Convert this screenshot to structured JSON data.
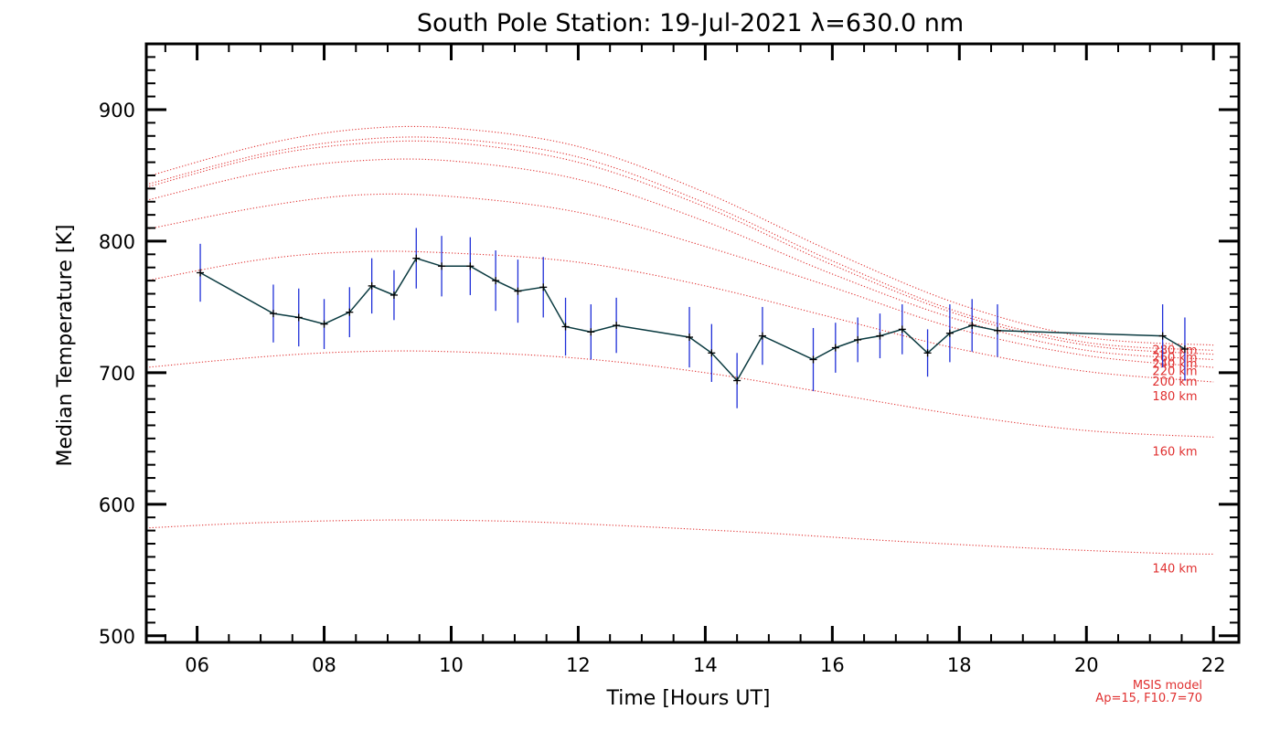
{
  "chart_data": {
    "type": "line",
    "title": "South Pole Station: 19-Jul-2021 λ=630.0 nm",
    "xlabel": "Time [Hours UT]",
    "ylabel": "Median Temperature [K]",
    "xlim": [
      5.2,
      22.4
    ],
    "ylim": [
      495,
      950
    ],
    "x_ticks": [
      6,
      8,
      10,
      12,
      14,
      16,
      18,
      20,
      22
    ],
    "x_tick_labels": [
      "06",
      "08",
      "10",
      "12",
      "14",
      "16",
      "18",
      "20",
      "22"
    ],
    "y_ticks": [
      500,
      600,
      700,
      800,
      900
    ],
    "y_tick_labels": [
      "500",
      "600",
      "700",
      "800",
      "900"
    ],
    "grid": false,
    "colors": {
      "measured": "#0a3a40",
      "error_bars": "#1f2fd8",
      "markers": "#000000",
      "model": "#e03030"
    },
    "series": [
      {
        "points": [
          [
            6.05,
            776,
            22
          ],
          [
            7.2,
            745,
            22
          ],
          [
            7.6,
            742,
            22
          ],
          [
            8.0,
            737,
            19
          ],
          [
            8.4,
            746,
            19
          ],
          [
            8.75,
            766,
            21
          ],
          [
            9.1,
            759,
            19
          ],
          [
            9.45,
            787,
            23
          ],
          [
            9.85,
            781,
            23
          ],
          [
            10.3,
            781,
            22
          ],
          [
            10.7,
            770,
            23
          ],
          [
            11.05,
            762,
            24
          ],
          [
            11.45,
            765,
            23
          ],
          [
            11.8,
            735,
            22
          ],
          [
            12.2,
            731,
            21
          ],
          [
            12.6,
            736,
            21
          ],
          [
            13.75,
            727,
            23
          ],
          [
            14.1,
            715,
            22
          ],
          [
            14.5,
            694,
            21
          ],
          [
            14.9,
            728,
            22
          ],
          [
            15.7,
            710,
            24
          ],
          [
            16.05,
            719,
            19
          ],
          [
            16.4,
            725,
            17
          ],
          [
            16.75,
            728,
            17
          ],
          [
            17.1,
            733,
            19
          ],
          [
            17.5,
            715,
            18
          ],
          [
            17.85,
            730,
            22
          ],
          [
            18.2,
            736,
            20
          ],
          [
            18.6,
            732,
            20
          ],
          [
            21.2,
            728,
            24
          ],
          [
            21.55,
            718,
            24
          ]
        ]
      }
    ],
    "model_curves": [
      {
        "label": "140 km",
        "x": [
          5.2,
          7,
          9,
          11,
          13,
          15,
          17,
          19,
          21,
          22
        ],
        "y": [
          582,
          586,
          588,
          587,
          583,
          578,
          572,
          567,
          563,
          562
        ]
      },
      {
        "label": "160 km",
        "x": [
          5.2,
          7,
          8.5,
          10,
          12,
          14,
          16,
          18,
          20,
          22
        ],
        "y": [
          704,
          712,
          716,
          716,
          711,
          700,
          684,
          668,
          656,
          651
        ]
      },
      {
        "label": "180 km",
        "x": [
          5.2,
          7,
          8.5,
          10,
          12,
          14,
          16,
          18,
          20,
          22
        ],
        "y": [
          770,
          786,
          792,
          791,
          784,
          766,
          742,
          718,
          701,
          693
        ]
      },
      {
        "label": "200 km",
        "x": [
          5.2,
          7,
          8.5,
          10,
          12,
          14,
          16,
          18,
          20,
          22
        ],
        "y": [
          809,
          826,
          835,
          834,
          822,
          796,
          765,
          733,
          713,
          704
        ]
      },
      {
        "label": "220 km",
        "x": [
          5.2,
          7,
          8.5,
          10,
          12,
          14,
          16,
          18,
          20,
          22
        ],
        "y": [
          831,
          852,
          861,
          861,
          847,
          815,
          775,
          740,
          717,
          710
        ]
      },
      {
        "label": "240 km",
        "x": [
          5.2,
          7,
          8.5,
          10,
          12,
          14,
          16,
          18,
          20,
          22
        ],
        "y": [
          841,
          864,
          874,
          875,
          860,
          826,
          782,
          744,
          721,
          714
        ]
      },
      {
        "label": "260 km",
        "x": [
          5.2,
          7,
          8.5,
          10,
          12,
          14,
          16,
          18,
          20,
          22
        ],
        "y": [
          843,
          866,
          877,
          878,
          864,
          829,
          785,
          746,
          723,
          717
        ]
      },
      {
        "label": "280 km",
        "x": [
          5.2,
          7,
          8.5,
          10,
          12,
          14,
          16,
          18,
          20,
          22
        ],
        "y": [
          849,
          873,
          885,
          886,
          872,
          837,
          792,
          752,
          727,
          721
        ]
      }
    ],
    "annotations": [
      "MSIS model",
      "Ap=15, F10.7=70"
    ]
  }
}
